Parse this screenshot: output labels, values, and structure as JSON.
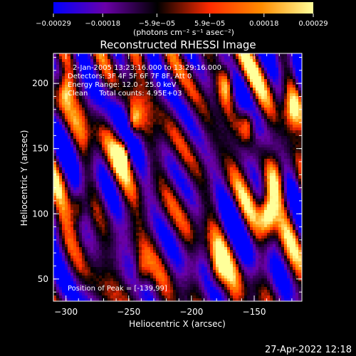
{
  "chart_data": {
    "type": "heatmap",
    "title": "Reconstructed RHESSI Image",
    "xlabel": "Heliocentric X (arcsec)",
    "ylabel": "Heliocentric Y (arcsec)",
    "xlim": [
      -310,
      -112
    ],
    "ylim": [
      33,
      223
    ],
    "x_ticks": [
      -300,
      -250,
      -200,
      -150
    ],
    "x_tick_labels": [
      "−300",
      "−250",
      "−200",
      "−150"
    ],
    "y_ticks": [
      50,
      100,
      150,
      200
    ],
    "y_tick_labels": [
      "50",
      "100",
      "150",
      "200"
    ],
    "colorbar": {
      "min": -0.00029,
      "max": 0.00029,
      "tick_values": [
        -0.00029,
        -0.00018,
        -5.9e-05,
        5.9e-05,
        0.00018,
        0.00029
      ],
      "tick_labels": [
        "−0.00029",
        "−0.00018",
        "−5.9e−05",
        "5.9e−05",
        "0.00018",
        "0.00029"
      ],
      "unit_label": "(photons cm⁻² s⁻¹ asec⁻²)",
      "colors": [
        "#0000ff",
        "#6a00a8",
        "#000000",
        "#ff2a00",
        "#ff8c00",
        "#ffff9a"
      ]
    },
    "annotations": [
      "2-Jan-2005 13:23:16.000 to 13:29:16.000",
      "Detectors: 3F 4F 5F 6F 7F 8F, Att 0",
      "Energy Range: 12.0 - 25.0 keV",
      "Clean     Total counts: 4.95E+03"
    ],
    "peak_label": "Position of Peak = [-139,99]",
    "peak": {
      "x": -139,
      "y": 99
    },
    "bright_regions": [
      {
        "x": -139,
        "y": 99,
        "radius": 9,
        "intensity": 1.0
      },
      {
        "x": -134,
        "y": 125,
        "radius": 12,
        "intensity": 0.75
      },
      {
        "x": -155,
        "y": 170,
        "radius": 8,
        "intensity": 0.7
      },
      {
        "x": -172,
        "y": 200,
        "radius": 9,
        "intensity": 0.8
      },
      {
        "x": -246,
        "y": 170,
        "radius": 7,
        "intensity": 0.75
      },
      {
        "x": -255,
        "y": 145,
        "radius": 7,
        "intensity": 0.85
      },
      {
        "x": -180,
        "y": 55,
        "radius": 10,
        "intensity": 0.6
      },
      {
        "x": -240,
        "y": 55,
        "radius": 8,
        "intensity": 0.55
      },
      {
        "x": -300,
        "y": 195,
        "radius": 8,
        "intensity": 0.55
      },
      {
        "x": -290,
        "y": 105,
        "radius": 7,
        "intensity": 0.5
      },
      {
        "x": -120,
        "y": 180,
        "radius": 10,
        "intensity": 0.6
      }
    ]
  },
  "footer": {
    "timestamp": "27-Apr-2022 12:18"
  }
}
